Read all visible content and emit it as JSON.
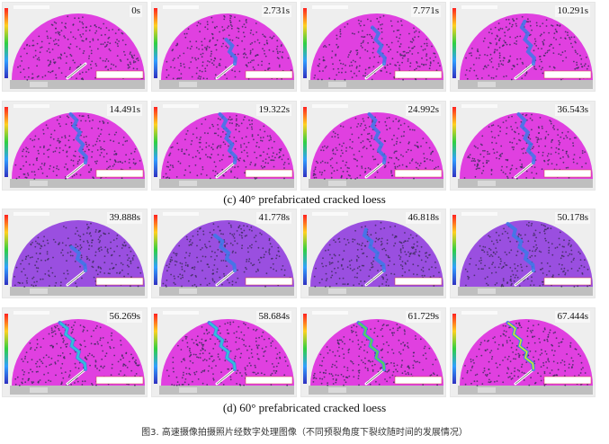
{
  "captions": {
    "c": "(c) 40° prefabricated cracked loess",
    "d": "(d) 60° prefabricated cracked loess",
    "figure": "图3. 高速摄像拍摄照片经数字处理图像（不同预裂角度下裂纹随时间的发展情况）"
  },
  "colors": {
    "specimen_magenta": "#e040e0",
    "specimen_violet": "#9a4fe0",
    "particle": "#3a2a5a",
    "crack_blue": "#3a7ae8",
    "crack_cyan": "#30c8d8",
    "crack_green": "#60d040",
    "crack_yellow": "#e8e030",
    "platen_grey": "#bfbfbf"
  },
  "groups": [
    {
      "name": "40-degree",
      "rows": [
        {
          "panels": [
            {
              "time": "0s",
              "crack": 0.0,
              "tone": "magenta",
              "intensity": 0
            },
            {
              "time": "2.731s",
              "crack": 0.55,
              "tone": "magenta",
              "intensity": 0
            },
            {
              "time": "7.771s",
              "crack": 0.75,
              "tone": "magenta",
              "intensity": 0
            },
            {
              "time": "10.291s",
              "crack": 0.9,
              "tone": "magenta",
              "intensity": 0
            }
          ]
        },
        {
          "panels": [
            {
              "time": "14.491s",
              "crack": 1.0,
              "tone": "magenta",
              "intensity": 0
            },
            {
              "time": "19.322s",
              "crack": 1.0,
              "tone": "magenta",
              "intensity": 0
            },
            {
              "time": "24.992s",
              "crack": 1.0,
              "tone": "magenta",
              "intensity": 0
            },
            {
              "time": "36.543s",
              "crack": 1.0,
              "tone": "magenta",
              "intensity": 0
            }
          ]
        }
      ]
    },
    {
      "name": "60-degree",
      "rows": [
        {
          "panels": [
            {
              "time": "39.888s",
              "crack": 0.5,
              "tone": "violet",
              "intensity": 0
            },
            {
              "time": "41.778s",
              "crack": 0.7,
              "tone": "violet",
              "intensity": 0
            },
            {
              "time": "46.818s",
              "crack": 0.85,
              "tone": "violet",
              "intensity": 0
            },
            {
              "time": "50.178s",
              "crack": 1.0,
              "tone": "violet",
              "intensity": 0
            }
          ]
        },
        {
          "panels": [
            {
              "time": "56.269s",
              "crack": 1.0,
              "tone": "magenta",
              "intensity": 1
            },
            {
              "time": "58.684s",
              "crack": 1.0,
              "tone": "magenta",
              "intensity": 2
            },
            {
              "time": "61.729s",
              "crack": 1.0,
              "tone": "magenta",
              "intensity": 3
            },
            {
              "time": "67.444s",
              "crack": 1.0,
              "tone": "magenta",
              "intensity": 4
            }
          ]
        }
      ]
    }
  ]
}
